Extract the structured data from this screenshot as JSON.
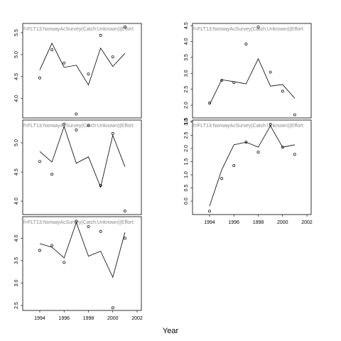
{
  "xlabel": "Year",
  "chart_data": [
    {
      "type": "line",
      "strip": "f=FLT13:NorwayAcSurvey(Catch:Unknown)(Effort:",
      "x": [
        1994,
        1995,
        1996,
        1997,
        1998,
        1999,
        2000,
        2001
      ],
      "series": [
        {
          "color": "#000000",
          "marker": "circle",
          "values": [
            4.47,
            5.11,
            4.81,
            3.65,
            4.56,
            5.44,
            4.95,
            5.63
          ]
        },
        {
          "color": "#000000",
          "marker": "none",
          "values": [
            4.65,
            5.26,
            4.71,
            4.76,
            4.31,
            5.15,
            4.73,
            5.03
          ]
        }
      ],
      "xlim": [
        1992.6,
        2002.35
      ],
      "xticks": [
        1994,
        1996,
        1998,
        2000,
        2002
      ],
      "show_xticks": false,
      "ylim": [
        3.56,
        5.71
      ],
      "yticks": [
        {
          "value": 4,
          "label": "4.0"
        },
        4.5,
        {
          "value": 5,
          "label": "5.0"
        },
        5.5
      ]
    },
    {
      "type": "line",
      "strip": "f=FLT13:NorwayAcSurvey(Catch:Unknown)(Effort:",
      "x": [
        1994,
        1995,
        1996,
        1997,
        1998,
        1999,
        2000,
        2001
      ],
      "series": [
        {
          "color": "#000000",
          "marker": "circle",
          "values": [
            2.07,
            2.78,
            2.71,
            3.92,
            4.46,
            3.04,
            2.44,
            1.7
          ]
        },
        {
          "color": "#000000",
          "marker": "none",
          "values": [
            2.02,
            2.8,
            2.74,
            2.67,
            3.46,
            2.6,
            2.65,
            2.22
          ]
        }
      ],
      "xlim": [
        1992.6,
        2002.35
      ],
      "xticks": [
        1994,
        1996,
        1998,
        2000,
        2002
      ],
      "show_xticks": false,
      "ylim": [
        1.6,
        4.57
      ],
      "yticks": [
        1.5,
        {
          "value": 2,
          "label": "2.0"
        },
        2.5,
        {
          "value": 3,
          "label": "3.0"
        },
        3.5,
        {
          "value": 4,
          "label": "4.0"
        },
        4.5
      ]
    },
    {
      "type": "line",
      "strip": "f=FLT13:NorwayAcSurvey(Catch:Unknown)(Effort:",
      "x": [
        1994,
        1995,
        1996,
        1997,
        1998,
        1999,
        2000,
        2001
      ],
      "series": [
        {
          "color": "#000000",
          "marker": "circle",
          "values": [
            4.68,
            4.46,
            5.32,
            5.22,
            5.3,
            4.27,
            5.16,
            3.83
          ]
        },
        {
          "color": "#000000",
          "marker": "none",
          "values": [
            4.85,
            4.67,
            5.28,
            4.65,
            4.76,
            4.24,
            5.13,
            4.59
          ]
        }
      ],
      "xlim": [
        1992.6,
        2002.35
      ],
      "xticks": [
        1994,
        1996,
        1998,
        2000,
        2002
      ],
      "show_xticks": false,
      "ylim": [
        3.77,
        5.39
      ],
      "yticks": [
        {
          "value": 4,
          "label": "4.0"
        },
        4.5,
        {
          "value": 5,
          "label": "5.0"
        }
      ]
    },
    {
      "type": "line",
      "strip": "f=FLT13:NorwayAcSurvey(Catch:Unknown)(Effort:",
      "x": [
        1994,
        1995,
        1996,
        1997,
        1998,
        1999,
        2000,
        2001
      ],
      "series": [
        {
          "color": "#000000",
          "marker": "circle",
          "values": [
            -0.38,
            0.86,
            1.35,
            2.24,
            1.86,
            2.92,
            2.05,
            1.78
          ]
        },
        {
          "color": "#000000",
          "marker": "none",
          "values": [
            -0.19,
            1.19,
            2.14,
            2.24,
            2.05,
            2.86,
            2.05,
            2.14
          ]
        }
      ],
      "xlim": [
        1992.6,
        2002.35
      ],
      "xticks": [
        1994,
        1996,
        1998,
        2000,
        2002
      ],
      "show_xticks": true,
      "ylim": [
        -0.51,
        3.08
      ],
      "yticks": [
        {
          "value": 0,
          "label": "0.0"
        },
        0.5,
        {
          "value": 1,
          "label": "1.0"
        },
        1.5,
        {
          "value": 2,
          "label": "2.0"
        },
        2.5,
        {
          "value": 3,
          "label": "3.0"
        }
      ]
    },
    {
      "type": "line",
      "strip": "f=FLT13:NorwayAcSurvey(Catch:Unknown)(Effort:",
      "x": [
        1994,
        1995,
        1996,
        1997,
        1998,
        1999,
        2000,
        2001
      ],
      "series": [
        {
          "color": "#000000",
          "marker": "circle",
          "values": [
            3.73,
            3.84,
            3.46,
            4.38,
            4.26,
            4.15,
            2.45,
            4.0
          ]
        },
        {
          "color": "#000000",
          "marker": "none",
          "values": [
            3.88,
            3.8,
            3.56,
            4.35,
            3.6,
            3.71,
            3.13,
            4.13
          ]
        }
      ],
      "xlim": [
        1992.6,
        2002.35
      ],
      "xticks": [
        1994,
        1996,
        1998,
        2000,
        2002
      ],
      "show_xticks": true,
      "ylim": [
        2.39,
        4.48
      ],
      "yticks": [
        2.5,
        {
          "value": 3,
          "label": "3.0"
        },
        3.5,
        {
          "value": 4,
          "label": "4.0"
        }
      ]
    }
  ]
}
